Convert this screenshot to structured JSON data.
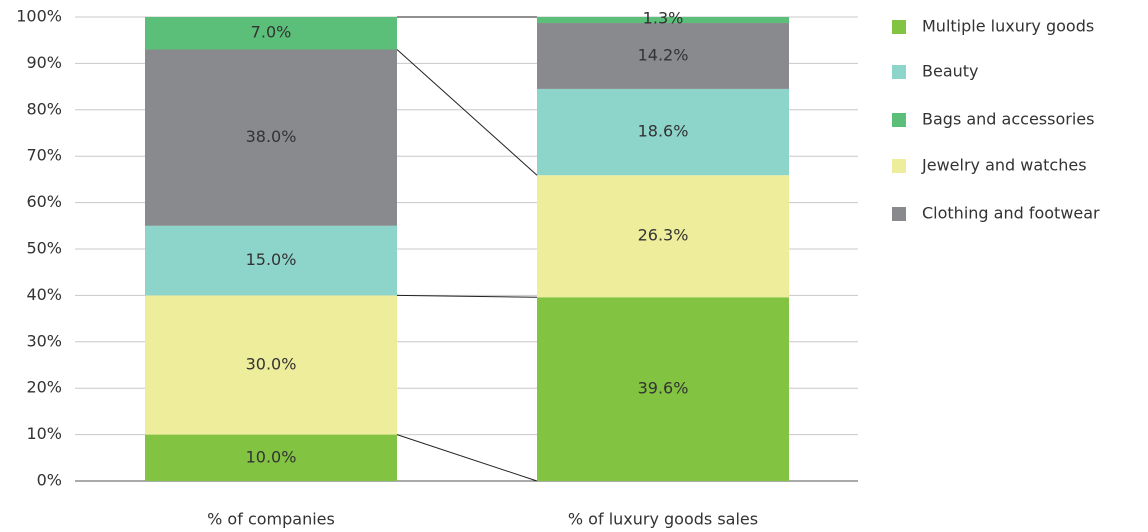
{
  "chart_data": {
    "type": "stacked_bar",
    "categories": [
      "% of companies",
      "% of luxury goods sales"
    ],
    "series": [
      {
        "name": "Multiple luxury goods",
        "color": "#82c341",
        "values": [
          10.0,
          39.6
        ],
        "value_labels": [
          "10.0%",
          "39.6%"
        ]
      },
      {
        "name": "Beauty",
        "color": "#8dd4ca",
        "values": [
          15.0,
          18.6
        ],
        "value_labels": [
          "15.0%",
          "18.6%"
        ]
      },
      {
        "name": "Bags and accessories",
        "color": "#5bbf7a",
        "values": [
          7.0,
          1.3
        ],
        "value_labels": [
          "7.0%",
          "1.3%"
        ]
      },
      {
        "name": "Jewelry and watches",
        "color": "#eded9c",
        "values": [
          30.0,
          26.3
        ],
        "value_labels": [
          "30.0%",
          "26.3%"
        ]
      },
      {
        "name": "Clothing and footwear",
        "color": "#898a8e",
        "values": [
          38.0,
          14.2
        ],
        "value_labels": [
          "38.0%",
          "14.2%"
        ]
      }
    ],
    "stack_order": [
      0,
      3,
      1,
      4,
      2
    ],
    "ylim": [
      0,
      100
    ],
    "yticks": [
      {
        "value": 0,
        "label": "0%"
      },
      {
        "value": 10,
        "label": "10%"
      },
      {
        "value": 20,
        "label": "20%"
      },
      {
        "value": 30,
        "label": "30%"
      },
      {
        "value": 40,
        "label": "40%"
      },
      {
        "value": 50,
        "label": "50%"
      },
      {
        "value": 60,
        "label": "60%"
      },
      {
        "value": 70,
        "label": "70%"
      },
      {
        "value": 80,
        "label": "80%"
      },
      {
        "value": 90,
        "label": "90%"
      },
      {
        "value": 100,
        "label": "100%"
      }
    ],
    "grid": true,
    "legend": "right"
  }
}
